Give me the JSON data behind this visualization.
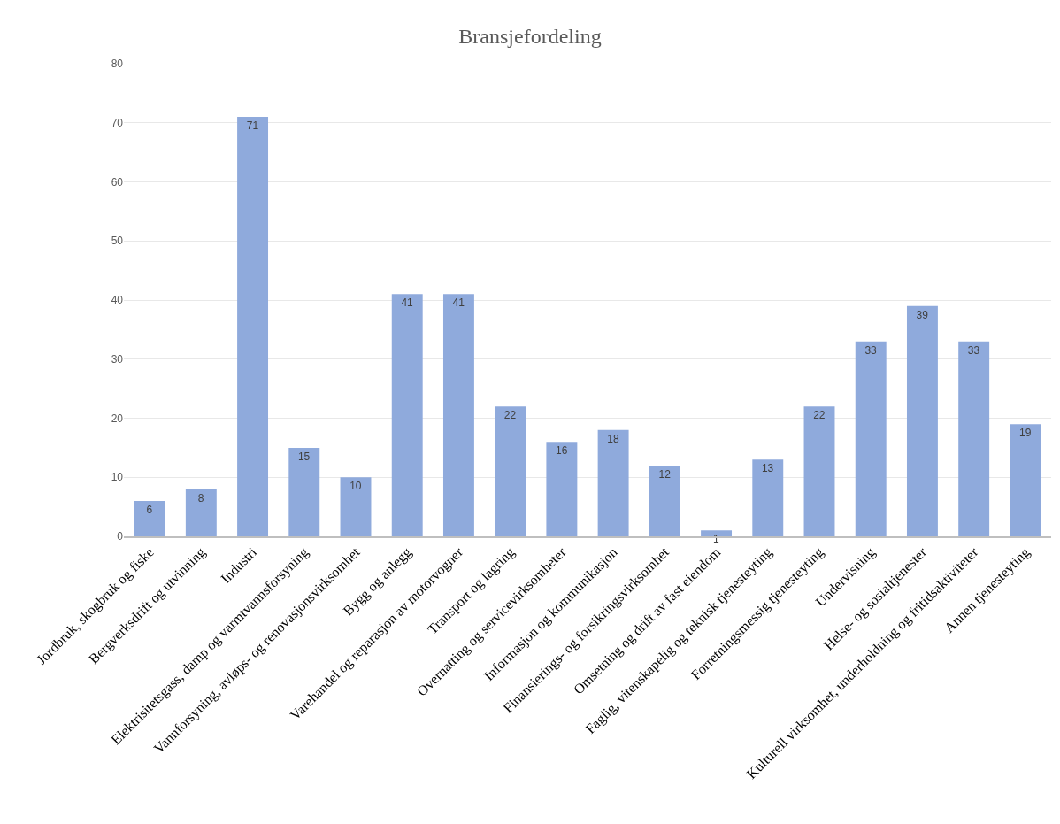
{
  "chart_data": {
    "type": "bar",
    "title": "Bransjefordeling",
    "categories": [
      "Jordbruk, skogbruk og fiske",
      "Bergverksdrift og utvinning",
      "Industri",
      "Elektrisitetsgass, damp og varmtvannsforsyning",
      "Vannforsyning, avløps- og renovasjonsvirksomhet",
      "Bygg og anlegg",
      "Varehandel og reparasjon av motorvogner",
      "Transport og lagring",
      "Overnatting og servicevirksomheter",
      "Informasjon og kommunikasjon",
      "Finansierings- og forsikringsvirksomhet",
      "Omsetning og drift av fast eiendom",
      "Faglig, vitenskapelig og teknisk tjenesteyting",
      "Forretningsmessig tjenesteyting",
      "Undervisning",
      "Helse- og sosialtjenester",
      "Kulturell virksomhet, underholdning og fritidsaktiviteter",
      "Annen tjenesteyting"
    ],
    "values": [
      6,
      8,
      71,
      15,
      10,
      41,
      41,
      22,
      16,
      18,
      12,
      1,
      13,
      22,
      33,
      39,
      33,
      19
    ],
    "color": "#8faadc",
    "ylim": [
      0,
      80
    ],
    "yticks": [
      0,
      10,
      20,
      30,
      40,
      50,
      60,
      70,
      80
    ],
    "grid": "y",
    "data_labels": true
  }
}
